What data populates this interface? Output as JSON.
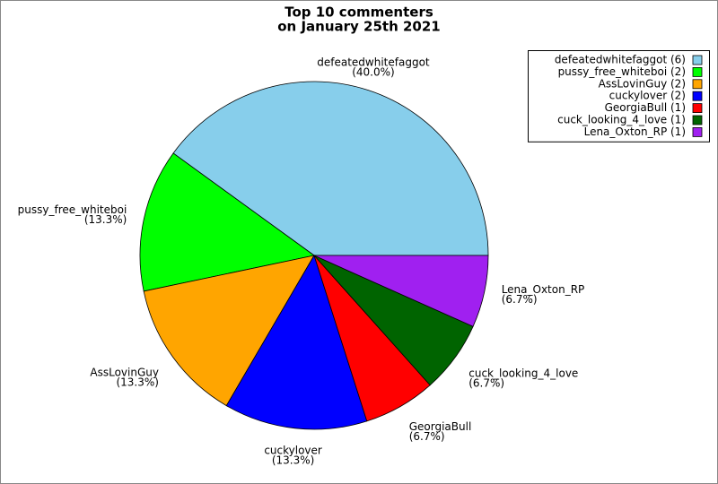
{
  "chart_data": {
    "type": "pie",
    "title": [
      "Top 10 commenters",
      "on January 25th 2021"
    ],
    "categories": [
      "defeatedwhitefaggot",
      "pussy_free_whiteboi",
      "AssLovinGuy",
      "cuckylover",
      "GeorgiaBull",
      "cuck_looking_4_love",
      "Lena_Oxton_RP"
    ],
    "values": [
      40.0,
      13.3,
      13.3,
      13.3,
      6.7,
      6.7,
      6.7
    ],
    "value_labels": [
      "(40.0%)",
      "(13.3%)",
      "(13.3%)",
      "(13.3%)",
      "(6.7%)",
      "(6.7%)",
      "(6.7%)"
    ],
    "colors": [
      "#87ceeb",
      "#00ff00",
      "#ffa500",
      "#0000ff",
      "#ff0000",
      "#006400",
      "#a020f0"
    ],
    "legend_labels": [
      "defeatedwhitefaggot (6)",
      "pussy_free_whiteboi (2)",
      "AssLovinGuy (2)",
      "cuckylover (2)",
      "GeorgiaBull (1)",
      "cuck_looking_4_love (1)",
      "Lena_Oxton_RP (1)"
    ],
    "legend": "upper right"
  }
}
